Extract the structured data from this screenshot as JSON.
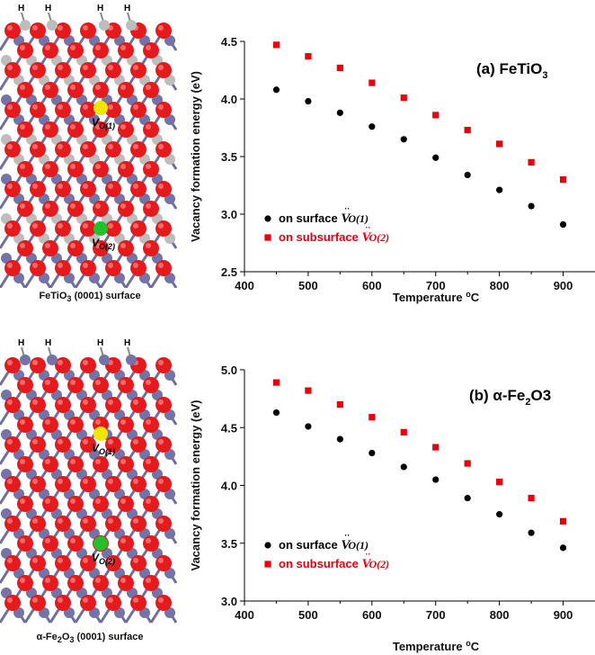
{
  "panels": [
    {
      "structure_caption": "FeTiO3 (0001) surface",
      "site_labels": {
        "top": "V_O(1)",
        "bottom": "V_O(2)"
      },
      "atom_labels": [
        "H",
        "H",
        "H",
        "H"
      ],
      "cation_color": "#bdbdbd"
    },
    {
      "structure_caption": "α-Fe2O3 (0001) surface",
      "site_labels": {
        "top": "V_O(1)",
        "bottom": "V_O(2)"
      },
      "atom_labels": [
        "H",
        "H",
        "H",
        "H"
      ],
      "cation_color": "#7373a8"
    }
  ],
  "colors": {
    "oxygen": "#e41a1c",
    "iron": "#7373a8",
    "titanium": "#bdbdbd",
    "vacancy_surface": "#f2e600",
    "vacancy_subsurface": "#22c02a",
    "series_surface": "#000000",
    "series_subsurface": "#e8000b"
  },
  "chart_data": [
    {
      "type": "scatter",
      "annotation": "(a) FeTiO3",
      "xlabel": "Temperature °C",
      "ylabel": "Vacancy formation energy (eV)",
      "xlim": [
        400,
        950
      ],
      "ylim": [
        2.5,
        4.5
      ],
      "xticks": [
        400,
        500,
        600,
        700,
        800,
        900
      ],
      "yticks": [
        2.5,
        3.0,
        3.5,
        4.0,
        4.5
      ],
      "ytick_labels": [
        "2.5",
        "3.0",
        "3.5",
        "4.0",
        "4.5"
      ],
      "grid": false,
      "legend_position": "lower-left",
      "series": [
        {
          "name": "on surface V_O(1)",
          "marker": "circle",
          "color": "#000000",
          "x": [
            450,
            500,
            550,
            600,
            650,
            700,
            750,
            800,
            850,
            900
          ],
          "y": [
            4.08,
            3.98,
            3.88,
            3.76,
            3.65,
            3.49,
            3.34,
            3.21,
            3.07,
            2.91
          ]
        },
        {
          "name": "on subsurface V_O(2)",
          "marker": "square",
          "color": "#e8000b",
          "x": [
            450,
            500,
            550,
            600,
            650,
            700,
            750,
            800,
            850,
            900
          ],
          "y": [
            4.47,
            4.37,
            4.27,
            4.14,
            4.01,
            3.86,
            3.73,
            3.61,
            3.45,
            3.3
          ]
        }
      ]
    },
    {
      "type": "scatter",
      "annotation": "(b) α-Fe2O3",
      "xlabel": "Temperature °C",
      "ylabel": "Vacancy formation energy (eV)",
      "xlim": [
        400,
        950
      ],
      "ylim": [
        3.0,
        5.0
      ],
      "xticks": [
        400,
        500,
        600,
        700,
        800,
        900
      ],
      "yticks": [
        3.0,
        3.5,
        4.0,
        4.5,
        5.0
      ],
      "ytick_labels": [
        "3.0",
        "3.5",
        "4.0",
        "4.5",
        "5.0"
      ],
      "grid": false,
      "legend_position": "lower-left",
      "series": [
        {
          "name": "on surface V_O(1)",
          "marker": "circle",
          "color": "#000000",
          "x": [
            450,
            500,
            550,
            600,
            650,
            700,
            750,
            800,
            850,
            900
          ],
          "y": [
            4.63,
            4.51,
            4.4,
            4.28,
            4.16,
            4.05,
            3.89,
            3.75,
            3.59,
            3.46
          ]
        },
        {
          "name": "on subsurface V_O(2)",
          "marker": "square",
          "color": "#e8000b",
          "x": [
            450,
            500,
            550,
            600,
            650,
            700,
            750,
            800,
            850,
            900
          ],
          "y": [
            4.89,
            4.82,
            4.7,
            4.59,
            4.46,
            4.33,
            4.19,
            4.03,
            3.89,
            3.69
          ]
        }
      ]
    }
  ]
}
